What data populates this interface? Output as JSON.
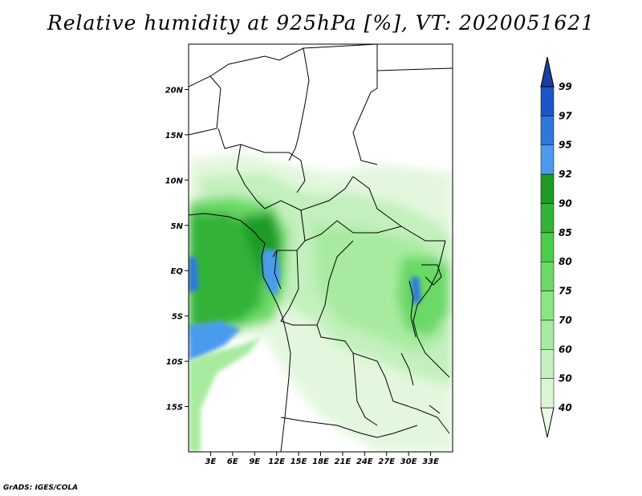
{
  "title": "Relative humidity at 925hPa [%], VT: 2020051621",
  "credit": "GrADS: IGES/COLA",
  "map": {
    "lon_range": [
      0,
      36
    ],
    "lat_range": [
      -20,
      25
    ],
    "x_ticks": [
      {
        "lon": 3,
        "label": "3E"
      },
      {
        "lon": 6,
        "label": "6E"
      },
      {
        "lon": 9,
        "label": "9E"
      },
      {
        "lon": 12,
        "label": "12E"
      },
      {
        "lon": 15,
        "label": "15E"
      },
      {
        "lon": 18,
        "label": "18E"
      },
      {
        "lon": 21,
        "label": "21E"
      },
      {
        "lon": 24,
        "label": "24E"
      },
      {
        "lon": 27,
        "label": "27E"
      },
      {
        "lon": 30,
        "label": "30E"
      },
      {
        "lon": 33,
        "label": "33E"
      }
    ],
    "y_ticks": [
      {
        "lat": 20,
        "label": "20N"
      },
      {
        "lat": 15,
        "label": "15N"
      },
      {
        "lat": 10,
        "label": "10N"
      },
      {
        "lat": 5,
        "label": "5N"
      },
      {
        "lat": 0,
        "label": "EQ"
      },
      {
        "lat": -5,
        "label": "5S"
      },
      {
        "lat": -10,
        "label": "10S"
      },
      {
        "lat": -15,
        "label": "15S"
      }
    ]
  },
  "colorbar": {
    "levels": [
      "40",
      "50",
      "60",
      "70",
      "75",
      "80",
      "85",
      "90",
      "92",
      "95",
      "97",
      "99"
    ],
    "colors": [
      "#edfaeb",
      "#d9f5d4",
      "#c3f0bd",
      "#a8eba0",
      "#8ae582",
      "#6bd966",
      "#4ccb4a",
      "#33b337",
      "#1f9b25",
      "#4a9bee",
      "#2d78dc",
      "#1d55c6",
      "#1a3fa0"
    ]
  },
  "fields": {
    "humid_regions": [
      {
        "region": "central-africa-inland",
        "level": "60"
      },
      {
        "region": "gulf-of-guinea-coast",
        "level": "85"
      },
      {
        "region": "east-african-lakes",
        "level": "80"
      },
      {
        "region": "atlantic-coast-gabon",
        "level": "95"
      }
    ]
  }
}
